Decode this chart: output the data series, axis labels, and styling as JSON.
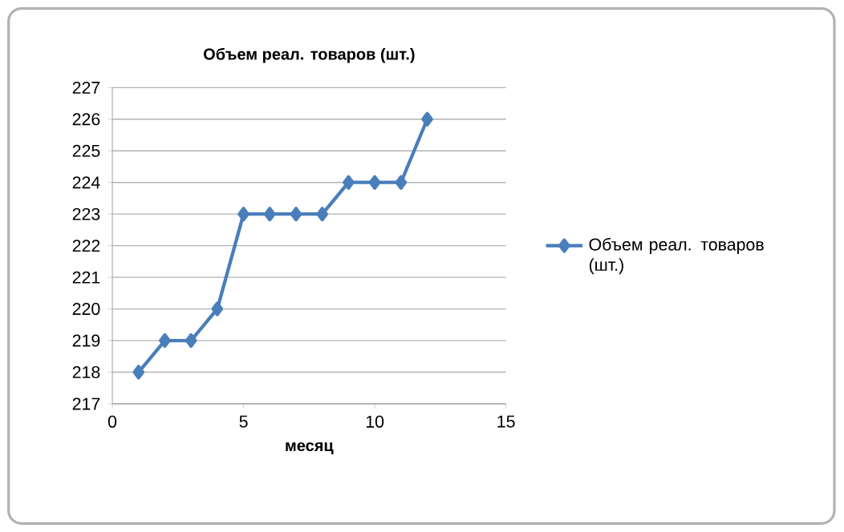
{
  "chart_data": {
    "type": "line",
    "title": "Объем реал. товаров (шт.)",
    "xlabel": "месяц",
    "x": [
      1,
      2,
      3,
      4,
      5,
      6,
      7,
      8,
      9,
      10,
      11,
      12
    ],
    "series": [
      {
        "name": "Объем реал. товаров (шт.)",
        "color": "#4a7ebb",
        "values": [
          218,
          219,
          219,
          220,
          223,
          223,
          223,
          223,
          224,
          224,
          224,
          226
        ]
      }
    ],
    "xlim": [
      0,
      15
    ],
    "xticks": [
      0,
      5,
      10,
      15
    ],
    "ylim": [
      217,
      227
    ],
    "yticks": [
      217,
      218,
      219,
      220,
      221,
      222,
      223,
      224,
      225,
      226,
      227
    ],
    "grid": "y",
    "legend": "right",
    "marker": "diamond",
    "line_style": "solid"
  }
}
